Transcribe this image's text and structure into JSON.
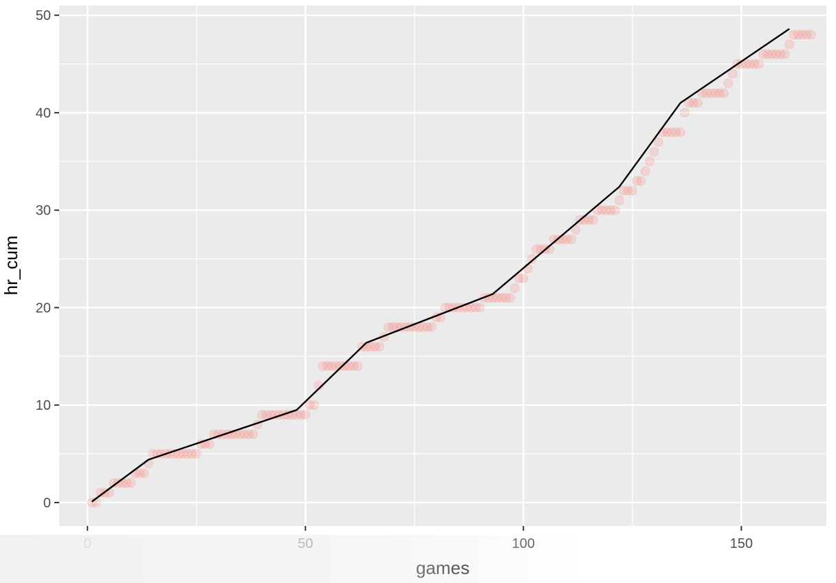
{
  "chart_data": {
    "type": "scatter",
    "title": "",
    "xlabel": "games",
    "ylabel": "hr_cum",
    "xlim": [
      -6.5,
      169.5
    ],
    "ylim": [
      -2.4,
      51
    ],
    "x_ticks": [
      0,
      50,
      100,
      150
    ],
    "y_ticks": [
      0,
      10,
      20,
      30,
      40,
      50
    ],
    "grid": true,
    "legend": "none",
    "colors": {
      "panel": "#ebebeb",
      "grid_major": "#ffffff",
      "points": "#f8766d",
      "line": "#000000"
    },
    "series": [
      {
        "kind": "points",
        "y": [
          0,
          0,
          1,
          1,
          1,
          2,
          2,
          2,
          2,
          2,
          3,
          3,
          3,
          4,
          5,
          5,
          5,
          5,
          5,
          5,
          5,
          5,
          5,
          5,
          5,
          6,
          6,
          6,
          7,
          7,
          7,
          7,
          7,
          7,
          7,
          7,
          7,
          7,
          8,
          9,
          9,
          9,
          9,
          9,
          9,
          9,
          9,
          9,
          9,
          9,
          10,
          10,
          12,
          14,
          14,
          14,
          14,
          14,
          14,
          14,
          14,
          14,
          16,
          16,
          16,
          16,
          16,
          17,
          18,
          18,
          18,
          18,
          18,
          18,
          18,
          18,
          18,
          18,
          18,
          19,
          19,
          20,
          20,
          20,
          20,
          20,
          20,
          20,
          20,
          20,
          21,
          21,
          21,
          21,
          21,
          21,
          21,
          22,
          23,
          23,
          24,
          25,
          26,
          26,
          26,
          26,
          27,
          27,
          27,
          27,
          27,
          28,
          29,
          29,
          29,
          29,
          30,
          30,
          30,
          30,
          30,
          31,
          32,
          32,
          32,
          33,
          33,
          34,
          35,
          36,
          37,
          38,
          38,
          38,
          38,
          38,
          40,
          41,
          41,
          41,
          42,
          42,
          42,
          42,
          42,
          42,
          43,
          44,
          45,
          45,
          45,
          45,
          45,
          45,
          46,
          46,
          46,
          46,
          46,
          46,
          47,
          48,
          48,
          48,
          48,
          48
        ]
      },
      {
        "kind": "line",
        "x": [
          1,
          14,
          48,
          64,
          93,
          122,
          136,
          161
        ],
        "y": [
          0.1,
          4.4,
          9.5,
          16.4,
          21.4,
          32.4,
          41.0,
          48.6
        ]
      }
    ]
  }
}
